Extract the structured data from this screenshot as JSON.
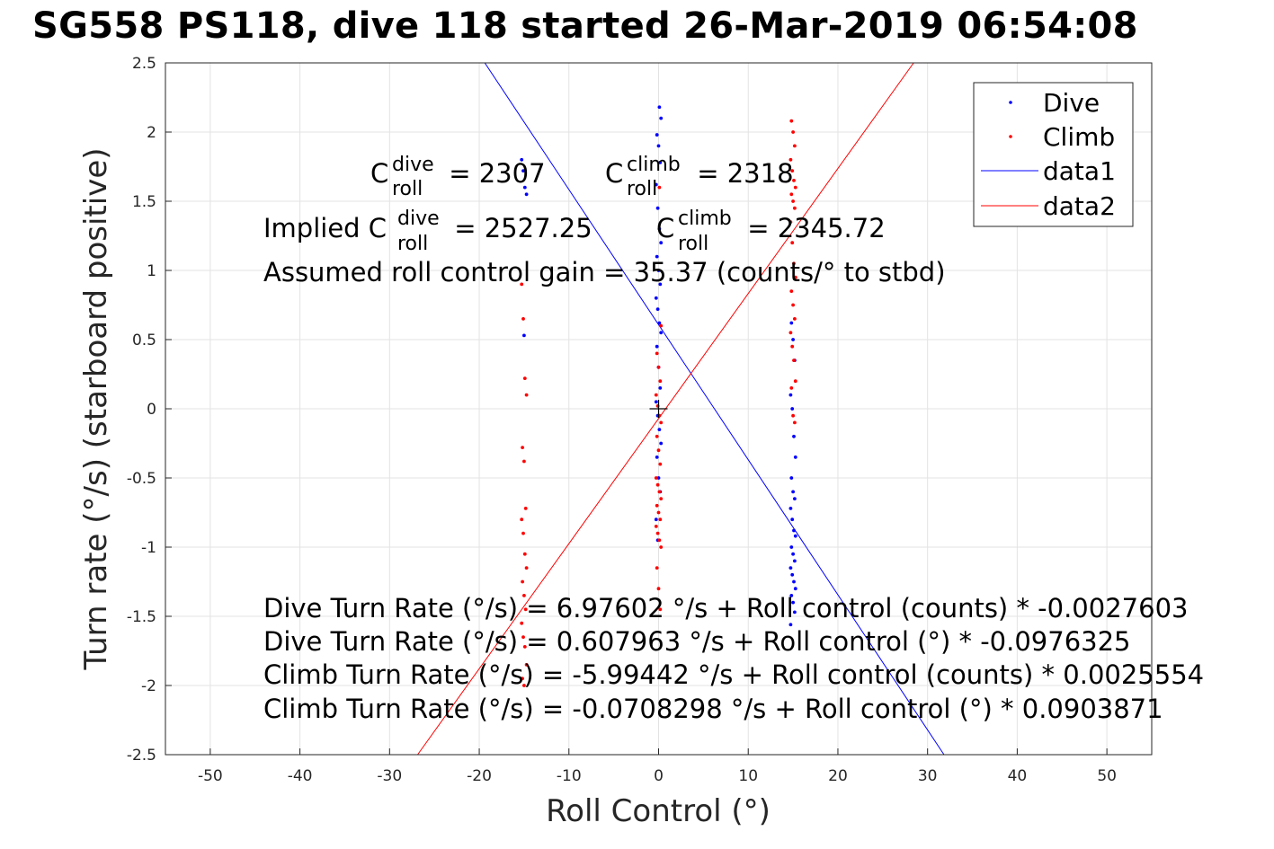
{
  "chart_data": {
    "type": "scatter",
    "title": "SG558 PS118, dive 118 started 26-Mar-2019 06:54:08",
    "xlabel": "Roll Control (°)",
    "ylabel": "Turn rate (°/s) (starboard positive)",
    "xlim": [
      -55,
      55
    ],
    "ylim": [
      -2.5,
      2.5
    ],
    "xticks": [
      "-50",
      "-40",
      "-30",
      "-20",
      "-10",
      "0",
      "10",
      "20",
      "30",
      "40",
      "50"
    ],
    "yticks": [
      "2.5",
      "2",
      "1.5",
      "1",
      "0.5",
      "0",
      "-0.5",
      "-1",
      "-1.5",
      "-2",
      "-2.5"
    ],
    "grid": true,
    "legend_position": "top-right",
    "legend": [
      "Dive",
      "Climb",
      "data1",
      "data2"
    ],
    "colors": {
      "dive": "#0000ff",
      "climb": "#ff0000",
      "data1": "#0000ff",
      "data2": "#ff0000"
    },
    "series": [
      {
        "name": "Dive",
        "kind": "points",
        "clusters": [
          {
            "x": -15,
            "y_values": [
              1.8,
              1.72,
              1.6,
              1.55,
              1.26,
              0.53
            ]
          },
          {
            "x": 0,
            "y_values": [
              2.18,
              2.1,
              1.98,
              1.9,
              1.78,
              1.62,
              1.45,
              1.3,
              1.2,
              1.1,
              1.0,
              0.9,
              0.8,
              0.72,
              0.62,
              0.55,
              0.45,
              0.3,
              0.15,
              0.05,
              -0.05,
              -0.15,
              -0.25,
              -0.35,
              -0.5,
              -0.6,
              -0.8,
              -0.95
            ]
          },
          {
            "x": 15,
            "y_values": [
              0.62,
              0.5,
              0.35,
              0.1,
              0.0,
              -0.2,
              -0.35,
              -0.5,
              -0.6,
              -0.65,
              -0.72,
              -0.8,
              -0.88,
              -0.92,
              -1.0,
              -1.05,
              -1.1,
              -1.15,
              -1.2,
              -1.25,
              -1.3,
              -1.35,
              -1.4,
              -1.47,
              -1.56
            ]
          }
        ]
      },
      {
        "name": "Climb",
        "kind": "points",
        "clusters": [
          {
            "x": -15,
            "y_values": [
              0.9,
              0.65,
              0.22,
              0.1,
              -0.28,
              -0.38,
              -0.72,
              -0.8,
              -0.9,
              -1.05,
              -1.15,
              -1.25,
              -1.35,
              -1.45,
              -1.55,
              -1.65,
              -1.72,
              -1.85,
              -1.95,
              -2.0
            ]
          },
          {
            "x": 0,
            "y_values": [
              1.6,
              0.6,
              0.4,
              0.3,
              0.2,
              0.1,
              0.02,
              -0.05,
              -0.1,
              -0.2,
              -0.3,
              -0.4,
              -0.5,
              -0.55,
              -0.6,
              -0.65,
              -0.7,
              -0.75,
              -0.8,
              -0.85,
              -0.9,
              -0.95,
              -1.0,
              -1.15,
              -1.3,
              -1.45
            ]
          },
          {
            "x": 15,
            "y_values": [
              2.08,
              2.0,
              1.9,
              1.8,
              1.72,
              1.65,
              1.6,
              1.55,
              1.5,
              1.45,
              1.35,
              1.2,
              1.05,
              0.95,
              0.85,
              0.75,
              0.65,
              0.55,
              0.45,
              0.35,
              0.2,
              0.15,
              -0.05,
              -0.1
            ]
          }
        ]
      },
      {
        "name": "data1",
        "kind": "line",
        "intercept": 0.607963,
        "slope": -0.0976325
      },
      {
        "name": "data2",
        "kind": "line",
        "intercept": -0.0708298,
        "slope": 0.0903871
      }
    ],
    "annotations": {
      "c_roll_dive": {
        "base": "C",
        "sup": "dive",
        "sub": "roll",
        "value": " = 2307"
      },
      "c_roll_climb": {
        "base": "C",
        "sup": "climb",
        "sub": "roll",
        "value": " = 2318"
      },
      "implied_prefix": "Implied C",
      "implied_dive": {
        "sup": "dive",
        "sub": "roll",
        "value": " = 2527.25"
      },
      "implied_climb": {
        "base": "C",
        "sup": "climb",
        "sub": "roll",
        "value": " = 2345.72"
      },
      "gain_text": "Assumed roll control gain = 35.37 (counts/° to stbd)",
      "eq1": "Dive Turn Rate (°/s) = 6.97602 °/s + Roll control (counts) * -0.0027603",
      "eq2": "Dive Turn Rate (°/s) = 0.607963 °/s + Roll control (°) * -0.0976325",
      "eq3": "Climb Turn Rate (°/s) = -5.99442 °/s + Roll control (counts) * 0.0025554",
      "eq4": "Climb Turn Rate (°/s) = -0.0708298 °/s + Roll control (°) * 0.0903871"
    },
    "center_marker": {
      "x": 0,
      "y": 0
    }
  }
}
